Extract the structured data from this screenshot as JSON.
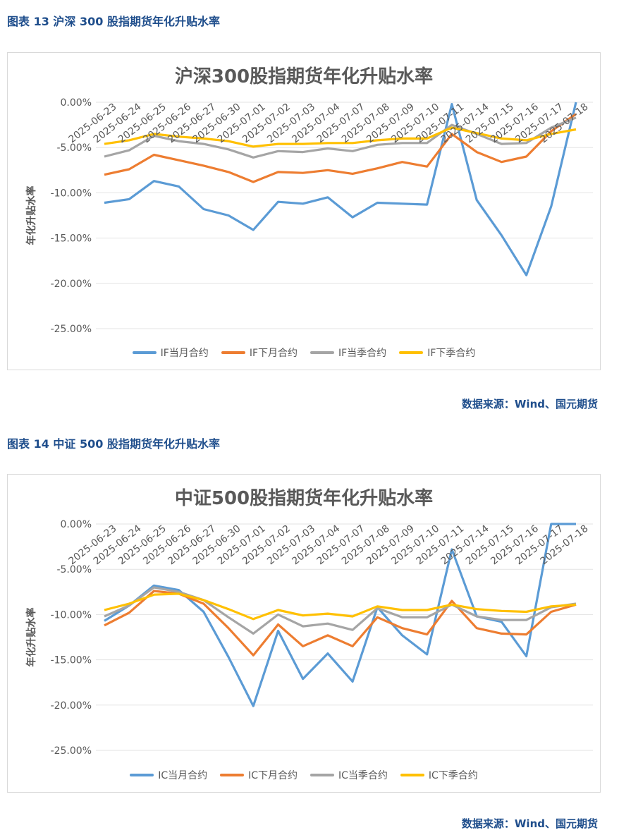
{
  "figures": [
    {
      "caption": "图表 13  沪深 300 股指期货年化升贴水率",
      "source": "数据来源：Wind、国元期货"
    },
    {
      "caption": "图表 14  中证 500 股指期货年化升贴水率",
      "source": "数据来源：Wind、国元期货"
    }
  ],
  "chart_data": [
    {
      "type": "line",
      "title": "沪深300股指期货年化升贴水率",
      "xlabel": "",
      "ylabel": "年化升贴水率",
      "ylim": [
        -25,
        0
      ],
      "yticks": [
        "0.00%",
        "-5.00%",
        "-10.00%",
        "-15.00%",
        "-20.00%",
        "-25.00%"
      ],
      "grid": true,
      "legend": "bottom",
      "categories": [
        "2025-06-23",
        "2025-06-24",
        "2025-06-25",
        "2025-06-26",
        "2025-06-27",
        "2025-06-30",
        "2025-07-01",
        "2025-07-02",
        "2025-07-03",
        "2025-07-04",
        "2025-07-07",
        "2025-07-08",
        "2025-07-09",
        "2025-07-10",
        "2025-07-11",
        "2025-07-14",
        "2025-07-15",
        "2025-07-16",
        "2025-07-17",
        "2025-07-18"
      ],
      "series": [
        {
          "name": "IF当月合约",
          "color": "#5b9bd5",
          "values": [
            -11.1,
            -10.7,
            -8.7,
            -9.3,
            -11.8,
            -12.5,
            -14.1,
            -11.0,
            -11.2,
            -10.5,
            -12.7,
            -11.1,
            -11.2,
            -11.3,
            -0.2,
            -10.8,
            -14.7,
            -19.1,
            -11.5,
            0.3
          ]
        },
        {
          "name": "IF下月合约",
          "color": "#ed7d31",
          "values": [
            -8.0,
            -7.4,
            -5.8,
            -6.4,
            -7.0,
            -7.7,
            -8.8,
            -7.7,
            -7.8,
            -7.5,
            -7.9,
            -7.3,
            -6.6,
            -7.1,
            -3.5,
            -5.5,
            -6.6,
            -6.0,
            -3.2,
            -1.3
          ]
        },
        {
          "name": "IF当季合约",
          "color": "#a5a5a5",
          "values": [
            -6.0,
            -5.3,
            -3.7,
            -4.3,
            -4.6,
            -5.2,
            -6.1,
            -5.4,
            -5.5,
            -5.1,
            -5.4,
            -4.7,
            -4.5,
            -4.5,
            -2.5,
            -3.5,
            -4.6,
            -4.5,
            -2.8,
            -1.7
          ]
        },
        {
          "name": "IF下季合约",
          "color": "#ffc000",
          "values": [
            -4.6,
            -4.2,
            -3.5,
            -3.8,
            -4.0,
            -4.3,
            -4.9,
            -4.6,
            -4.6,
            -4.5,
            -4.5,
            -4.2,
            -4.0,
            -4.0,
            -2.8,
            -3.4,
            -4.0,
            -4.2,
            -3.5,
            -3.0
          ]
        }
      ]
    },
    {
      "type": "line",
      "title": "中证500股指期货年化升贴水率",
      "xlabel": "",
      "ylabel": "年化升贴水率",
      "ylim": [
        -25,
        0
      ],
      "yticks": [
        "0.00%",
        "-5.00%",
        "-10.00%",
        "-15.00%",
        "-20.00%",
        "-25.00%"
      ],
      "grid": true,
      "legend": "bottom",
      "categories": [
        "2025-06-23",
        "2025-06-24",
        "2025-06-25",
        "2025-06-26",
        "2025-06-27",
        "2025-06-30",
        "2025-07-01",
        "2025-07-02",
        "2025-07-03",
        "2025-07-04",
        "2025-07-07",
        "2025-07-08",
        "2025-07-09",
        "2025-07-10",
        "2025-07-11",
        "2025-07-14",
        "2025-07-15",
        "2025-07-16",
        "2025-07-17",
        "2025-07-18"
      ],
      "series": [
        {
          "name": "IC当月合约",
          "color": "#5b9bd5",
          "values": [
            -10.7,
            -9.0,
            -6.8,
            -7.3,
            -9.7,
            -14.7,
            -20.1,
            -11.8,
            -17.1,
            -14.3,
            -17.4,
            -9.2,
            -12.3,
            -14.4,
            -2.8,
            -10.2,
            -10.8,
            -14.6,
            0.0,
            0.0
          ]
        },
        {
          "name": "IC下月合约",
          "color": "#ed7d31",
          "values": [
            -11.2,
            -9.8,
            -7.4,
            -7.7,
            -8.8,
            -11.5,
            -14.5,
            -11.1,
            -13.5,
            -12.3,
            -13.5,
            -10.3,
            -11.5,
            -12.2,
            -8.5,
            -11.5,
            -12.1,
            -12.2,
            -9.7,
            -8.9
          ]
        },
        {
          "name": "IC当季合约",
          "color": "#a5a5a5",
          "values": [
            -10.2,
            -9.0,
            -7.0,
            -7.5,
            -8.4,
            -10.3,
            -12.1,
            -10.0,
            -11.3,
            -11.0,
            -11.7,
            -9.3,
            -10.3,
            -10.3,
            -8.9,
            -10.2,
            -10.6,
            -10.6,
            -9.2,
            -8.8
          ]
        },
        {
          "name": "IC下季合约",
          "color": "#ffc000",
          "values": [
            -9.5,
            -8.8,
            -7.8,
            -7.7,
            -8.4,
            -9.4,
            -10.5,
            -9.5,
            -10.1,
            -9.9,
            -10.2,
            -9.1,
            -9.5,
            -9.5,
            -8.9,
            -9.4,
            -9.6,
            -9.7,
            -9.1,
            -8.9
          ]
        }
      ]
    }
  ]
}
